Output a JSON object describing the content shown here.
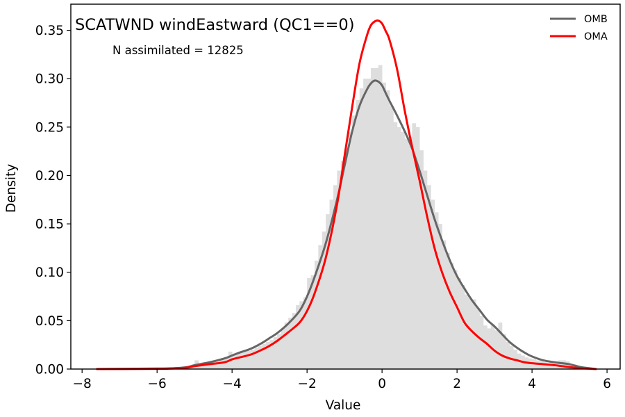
{
  "chart_data": {
    "type": "area",
    "title": "SCATWND windEastward (QC1==0)",
    "annotation": "N assimilated = 12825",
    "xlabel": "Value",
    "ylabel": "Density",
    "xlim": [
      -8.3,
      6.35
    ],
    "ylim": [
      0,
      0.377
    ],
    "x_ticks": [
      -8,
      -6,
      -4,
      -2,
      0,
      2,
      4,
      6
    ],
    "x_tick_labels": [
      "−8",
      "−6",
      "−4",
      "−2",
      "0",
      "2",
      "4",
      "6"
    ],
    "y_ticks": [
      0.0,
      0.05,
      0.1,
      0.15,
      0.2,
      0.25,
      0.3,
      0.35
    ],
    "y_tick_labels": [
      "0.00",
      "0.05",
      "0.10",
      "0.15",
      "0.20",
      "0.25",
      "0.30",
      "0.35"
    ],
    "grid": false,
    "legend": {
      "position": "top-right",
      "entries": [
        "OMB",
        "OMA"
      ]
    },
    "colors": {
      "OMB": "#666666",
      "OMA": "#ff0000",
      "histogram": "#dedede"
    },
    "histogram": {
      "bin_width": 0.1,
      "bins": [
        {
          "x": -5.2,
          "y": 0.002
        },
        {
          "x": -5.1,
          "y": 0.004
        },
        {
          "x": -5.0,
          "y": 0.009
        },
        {
          "x": -4.9,
          "y": 0.006
        },
        {
          "x": -4.8,
          "y": 0.006
        },
        {
          "x": -4.7,
          "y": 0.007
        },
        {
          "x": -4.6,
          "y": 0.008
        },
        {
          "x": -4.5,
          "y": 0.008
        },
        {
          "x": -4.4,
          "y": 0.009
        },
        {
          "x": -4.3,
          "y": 0.011
        },
        {
          "x": -4.2,
          "y": 0.012
        },
        {
          "x": -4.1,
          "y": 0.018
        },
        {
          "x": -4.0,
          "y": 0.015
        },
        {
          "x": -3.9,
          "y": 0.016
        },
        {
          "x": -3.8,
          "y": 0.017
        },
        {
          "x": -3.7,
          "y": 0.018
        },
        {
          "x": -3.6,
          "y": 0.019
        },
        {
          "x": -3.5,
          "y": 0.02
        },
        {
          "x": -3.4,
          "y": 0.022
        },
        {
          "x": -3.3,
          "y": 0.024
        },
        {
          "x": -3.2,
          "y": 0.026
        },
        {
          "x": -3.1,
          "y": 0.028
        },
        {
          "x": -3.0,
          "y": 0.03
        },
        {
          "x": -2.9,
          "y": 0.033
        },
        {
          "x": -2.8,
          "y": 0.036
        },
        {
          "x": -2.7,
          "y": 0.042
        },
        {
          "x": -2.6,
          "y": 0.048
        },
        {
          "x": -2.5,
          "y": 0.053
        },
        {
          "x": -2.4,
          "y": 0.058
        },
        {
          "x": -2.3,
          "y": 0.066
        },
        {
          "x": -2.2,
          "y": 0.07
        },
        {
          "x": -2.1,
          "y": 0.074
        },
        {
          "x": -2.0,
          "y": 0.094
        },
        {
          "x": -1.9,
          "y": 0.097
        },
        {
          "x": -1.8,
          "y": 0.112
        },
        {
          "x": -1.7,
          "y": 0.128
        },
        {
          "x": -1.6,
          "y": 0.142
        },
        {
          "x": -1.5,
          "y": 0.16
        },
        {
          "x": -1.4,
          "y": 0.175
        },
        {
          "x": -1.3,
          "y": 0.19
        },
        {
          "x": -1.2,
          "y": 0.205
        },
        {
          "x": -1.1,
          "y": 0.215
        },
        {
          "x": -1.0,
          "y": 0.228
        },
        {
          "x": -0.9,
          "y": 0.245
        },
        {
          "x": -0.8,
          "y": 0.262
        },
        {
          "x": -0.7,
          "y": 0.278
        },
        {
          "x": -0.6,
          "y": 0.29
        },
        {
          "x": -0.5,
          "y": 0.3
        },
        {
          "x": -0.4,
          "y": 0.3
        },
        {
          "x": -0.3,
          "y": 0.311
        },
        {
          "x": -0.2,
          "y": 0.311
        },
        {
          "x": -0.1,
          "y": 0.314
        },
        {
          "x": 0.0,
          "y": 0.296
        },
        {
          "x": 0.1,
          "y": 0.288
        },
        {
          "x": 0.2,
          "y": 0.272
        },
        {
          "x": 0.3,
          "y": 0.255
        },
        {
          "x": 0.4,
          "y": 0.25
        },
        {
          "x": 0.5,
          "y": 0.245
        },
        {
          "x": 0.6,
          "y": 0.238
        },
        {
          "x": 0.7,
          "y": 0.24
        },
        {
          "x": 0.8,
          "y": 0.254
        },
        {
          "x": 0.9,
          "y": 0.25
        },
        {
          "x": 1.0,
          "y": 0.226
        },
        {
          "x": 1.1,
          "y": 0.205
        },
        {
          "x": 1.2,
          "y": 0.19
        },
        {
          "x": 1.3,
          "y": 0.175
        },
        {
          "x": 1.4,
          "y": 0.162
        },
        {
          "x": 1.5,
          "y": 0.15
        },
        {
          "x": 1.6,
          "y": 0.133
        },
        {
          "x": 1.7,
          "y": 0.12
        },
        {
          "x": 1.8,
          "y": 0.11
        },
        {
          "x": 1.9,
          "y": 0.102
        },
        {
          "x": 2.0,
          "y": 0.094
        },
        {
          "x": 2.1,
          "y": 0.087
        },
        {
          "x": 2.2,
          "y": 0.077
        },
        {
          "x": 2.3,
          "y": 0.073
        },
        {
          "x": 2.4,
          "y": 0.072
        },
        {
          "x": 2.5,
          "y": 0.063
        },
        {
          "x": 2.6,
          "y": 0.055
        },
        {
          "x": 2.7,
          "y": 0.045
        },
        {
          "x": 2.8,
          "y": 0.042
        },
        {
          "x": 2.9,
          "y": 0.046
        },
        {
          "x": 3.0,
          "y": 0.04
        },
        {
          "x": 3.1,
          "y": 0.048
        },
        {
          "x": 3.2,
          "y": 0.036
        },
        {
          "x": 3.3,
          "y": 0.028
        },
        {
          "x": 3.4,
          "y": 0.024
        },
        {
          "x": 3.5,
          "y": 0.02
        },
        {
          "x": 3.6,
          "y": 0.016
        },
        {
          "x": 3.7,
          "y": 0.014
        },
        {
          "x": 3.8,
          "y": 0.012
        },
        {
          "x": 3.9,
          "y": 0.011
        },
        {
          "x": 4.0,
          "y": 0.01
        },
        {
          "x": 4.1,
          "y": 0.009
        },
        {
          "x": 4.2,
          "y": 0.008
        },
        {
          "x": 4.3,
          "y": 0.007
        },
        {
          "x": 4.4,
          "y": 0.006
        },
        {
          "x": 4.5,
          "y": 0.006
        },
        {
          "x": 4.6,
          "y": 0.008
        },
        {
          "x": 4.7,
          "y": 0.009
        },
        {
          "x": 4.8,
          "y": 0.009
        },
        {
          "x": 4.9,
          "y": 0.008
        },
        {
          "x": 5.0,
          "y": 0.005
        },
        {
          "x": 5.1,
          "y": 0.002
        }
      ]
    },
    "series": [
      {
        "name": "OMB",
        "x": [
          -7.6,
          -6.0,
          -5.5,
          -5.2,
          -5.0,
          -4.6,
          -4.2,
          -4.0,
          -3.8,
          -3.5,
          -3.2,
          -3.0,
          -2.8,
          -2.5,
          -2.2,
          -2.0,
          -1.8,
          -1.5,
          -1.2,
          -1.0,
          -0.8,
          -0.6,
          -0.4,
          -0.3,
          -0.2,
          -0.1,
          0.0,
          0.1,
          0.2,
          0.4,
          0.6,
          0.8,
          1.0,
          1.2,
          1.4,
          1.6,
          1.8,
          2.0,
          2.2,
          2.4,
          2.6,
          2.8,
          3.0,
          3.2,
          3.4,
          3.6,
          3.8,
          4.0,
          4.3,
          4.6,
          4.8,
          5.0,
          5.3,
          5.5,
          5.7
        ],
        "y": [
          0.0,
          0.0005,
          0.001,
          0.002,
          0.004,
          0.007,
          0.011,
          0.014,
          0.017,
          0.021,
          0.027,
          0.032,
          0.037,
          0.047,
          0.06,
          0.075,
          0.095,
          0.13,
          0.175,
          0.21,
          0.245,
          0.272,
          0.289,
          0.295,
          0.298,
          0.297,
          0.293,
          0.285,
          0.277,
          0.262,
          0.246,
          0.228,
          0.205,
          0.18,
          0.155,
          0.133,
          0.113,
          0.096,
          0.083,
          0.071,
          0.061,
          0.051,
          0.044,
          0.036,
          0.028,
          0.022,
          0.017,
          0.013,
          0.009,
          0.007,
          0.006,
          0.005,
          0.002,
          0.001,
          0.0
        ]
      },
      {
        "name": "OMA",
        "x": [
          -7.6,
          -6.0,
          -5.5,
          -5.2,
          -5.0,
          -4.6,
          -4.2,
          -4.0,
          -3.8,
          -3.5,
          -3.2,
          -3.0,
          -2.8,
          -2.5,
          -2.2,
          -2.0,
          -1.8,
          -1.5,
          -1.2,
          -1.0,
          -0.8,
          -0.6,
          -0.4,
          -0.3,
          -0.2,
          -0.1,
          0.0,
          0.1,
          0.2,
          0.4,
          0.6,
          0.8,
          1.0,
          1.2,
          1.4,
          1.6,
          1.8,
          2.0,
          2.2,
          2.4,
          2.6,
          2.8,
          3.0,
          3.2,
          3.4,
          3.6,
          3.8,
          4.0,
          4.3,
          4.6,
          4.8,
          5.0,
          5.3,
          5.5,
          5.7
        ],
        "y": [
          0.0,
          0.0003,
          0.0008,
          0.0015,
          0.003,
          0.005,
          0.007,
          0.01,
          0.012,
          0.015,
          0.02,
          0.024,
          0.029,
          0.038,
          0.048,
          0.06,
          0.078,
          0.115,
          0.17,
          0.22,
          0.27,
          0.316,
          0.345,
          0.355,
          0.359,
          0.36,
          0.357,
          0.349,
          0.34,
          0.31,
          0.268,
          0.23,
          0.195,
          0.158,
          0.125,
          0.1,
          0.08,
          0.064,
          0.048,
          0.039,
          0.032,
          0.026,
          0.019,
          0.014,
          0.011,
          0.009,
          0.007,
          0.006,
          0.005,
          0.004,
          0.003,
          0.002,
          0.001,
          0.0005,
          0.0
        ]
      }
    ]
  }
}
